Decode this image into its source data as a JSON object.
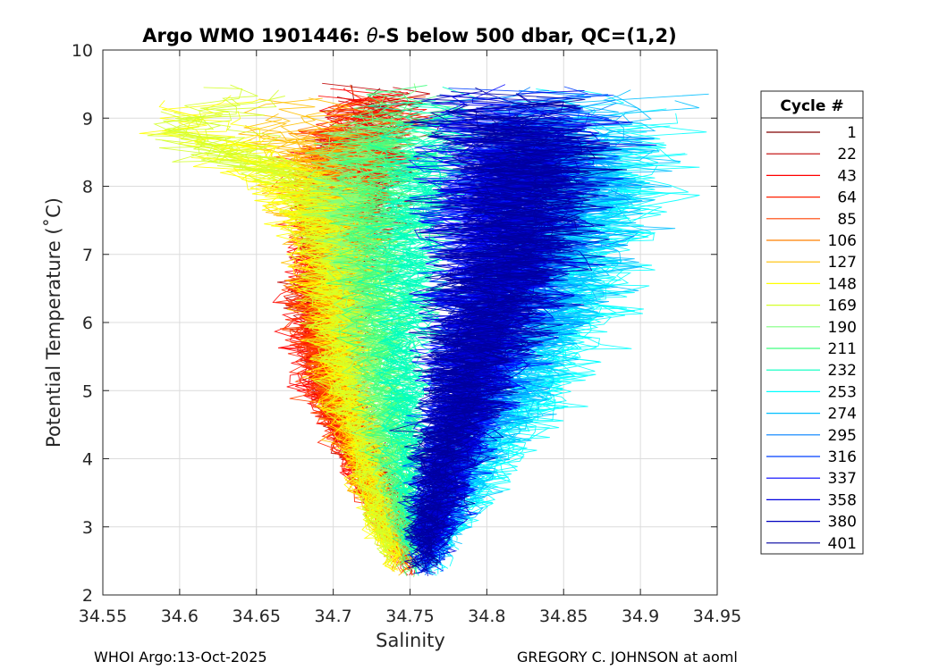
{
  "chart_data": {
    "type": "line",
    "title_prefix": "Argo WMO 1901446: ",
    "title_symbol": "θ",
    "title_suffix": "-S below 500 dbar,  QC=(1,2)",
    "xlabel": "Salinity",
    "ylabel": "Potential Temperature (˚C)",
    "xlim": [
      34.55,
      34.95
    ],
    "ylim": [
      2,
      10
    ],
    "xticks": [
      "34.55",
      "34.6",
      "34.65",
      "34.7",
      "34.75",
      "34.8",
      "34.85",
      "34.9",
      "34.95"
    ],
    "yticks": [
      "2",
      "3",
      "4",
      "5",
      "6",
      "7",
      "8",
      "9",
      "10"
    ],
    "grid": true,
    "legend_title": "Cycle #",
    "legend_position": "right-outside",
    "series": [
      {
        "name": "1",
        "color": "#800000",
        "center": [
          34.745,
          34.742,
          34.725,
          34.705,
          34.7,
          34.705,
          34.715,
          34.725,
          34.74
        ]
      },
      {
        "name": "22",
        "color": "#bf0000",
        "center": [
          34.748,
          34.74,
          34.72,
          34.7,
          34.695,
          34.7,
          34.71,
          34.72,
          34.735
        ]
      },
      {
        "name": "43",
        "color": "#ff0000",
        "center": [
          34.748,
          34.738,
          34.715,
          34.695,
          34.69,
          34.695,
          34.705,
          34.715,
          34.73
        ]
      },
      {
        "name": "64",
        "color": "#ff2000",
        "center": [
          34.748,
          34.738,
          34.715,
          34.698,
          34.692,
          34.698,
          34.708,
          34.718,
          34.735
        ]
      },
      {
        "name": "85",
        "color": "#ff4000",
        "center": [
          34.747,
          34.737,
          34.718,
          34.7,
          34.695,
          34.7,
          34.708,
          34.715,
          34.73
        ]
      },
      {
        "name": "106",
        "color": "#ff8000",
        "center": [
          34.745,
          34.735,
          34.72,
          34.705,
          34.7,
          34.702,
          34.705,
          34.71,
          34.72
        ]
      },
      {
        "name": "127",
        "color": "#ffbf00",
        "center": [
          34.743,
          34.733,
          34.722,
          34.71,
          34.705,
          34.7,
          34.69,
          34.68,
          34.69
        ]
      },
      {
        "name": "148",
        "color": "#ffff00",
        "center": [
          34.742,
          34.732,
          34.722,
          34.712,
          34.708,
          34.7,
          34.68,
          34.63,
          34.64
        ]
      },
      {
        "name": "169",
        "color": "#d4ff2b",
        "center": [
          34.742,
          34.733,
          34.725,
          34.715,
          34.71,
          34.705,
          34.69,
          34.6,
          34.65
        ]
      },
      {
        "name": "190",
        "color": "#80ff80",
        "center": [
          34.75,
          34.745,
          34.738,
          34.73,
          34.725,
          34.72,
          34.715,
          34.725,
          34.735
        ]
      },
      {
        "name": "211",
        "color": "#40ff80",
        "center": [
          34.752,
          34.748,
          34.742,
          34.735,
          34.73,
          34.728,
          34.73,
          34.738,
          34.745
        ]
      },
      {
        "name": "232",
        "color": "#00ffbf",
        "center": [
          34.755,
          34.752,
          34.748,
          34.745,
          34.745,
          34.748,
          34.755,
          34.765,
          34.775
        ]
      },
      {
        "name": "253",
        "color": "#00ffff",
        "center": [
          34.765,
          34.775,
          34.8,
          34.83,
          34.85,
          34.86,
          34.87,
          34.87,
          34.87
        ]
      },
      {
        "name": "274",
        "color": "#00bfff",
        "center": [
          34.762,
          34.77,
          34.79,
          34.815,
          34.835,
          34.85,
          34.86,
          34.855,
          34.86
        ]
      },
      {
        "name": "295",
        "color": "#0080ff",
        "center": [
          34.76,
          34.765,
          34.78,
          34.8,
          34.815,
          34.83,
          34.84,
          34.84,
          34.845
        ]
      },
      {
        "name": "316",
        "color": "#0040ff",
        "center": [
          34.76,
          34.765,
          34.775,
          34.79,
          34.8,
          34.815,
          34.825,
          34.83,
          34.83
        ]
      },
      {
        "name": "337",
        "color": "#0000ff",
        "center": [
          34.762,
          34.768,
          34.778,
          34.79,
          34.8,
          34.81,
          34.815,
          34.812,
          34.81
        ]
      },
      {
        "name": "358",
        "color": "#0000df",
        "center": [
          34.762,
          34.766,
          34.776,
          34.788,
          34.8,
          34.812,
          34.818,
          34.815,
          34.808
        ]
      },
      {
        "name": "380",
        "color": "#0000bf",
        "center": [
          34.76,
          34.764,
          34.775,
          34.79,
          34.805,
          34.82,
          34.83,
          34.825,
          34.815
        ]
      },
      {
        "name": "401",
        "color": "#00009f",
        "center": [
          34.76,
          34.763,
          34.772,
          34.785,
          34.8,
          34.815,
          34.825,
          34.82,
          34.812
        ]
      }
    ],
    "center_temperatures": [
      2.5,
      3.0,
      4.0,
      5.0,
      6.0,
      7.0,
      8.0,
      8.8,
      9.4
    ]
  },
  "footer": {
    "left": "WHOI Argo:13-Oct-2025",
    "right": "GREGORY C. JOHNSON at aoml"
  }
}
